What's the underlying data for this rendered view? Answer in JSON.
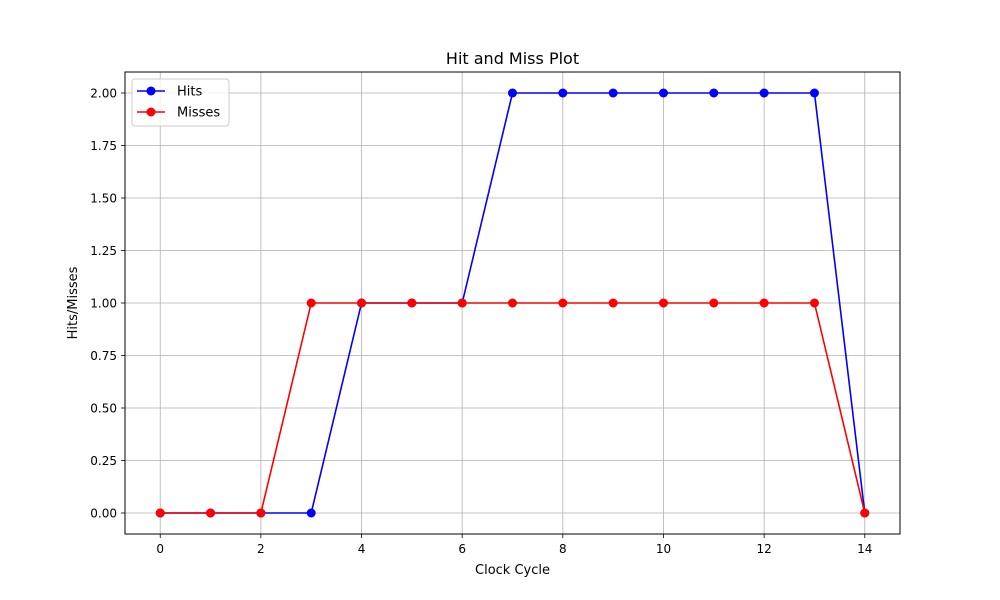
{
  "chart_data": {
    "type": "line",
    "title": "Hit and Miss Plot",
    "xlabel": "Clock Cycle",
    "ylabel": "Hits/Misses",
    "x": [
      0,
      1,
      2,
      3,
      4,
      5,
      6,
      7,
      8,
      9,
      10,
      11,
      12,
      13,
      14
    ],
    "series": [
      {
        "name": "Hits",
        "color": "#0000ff",
        "marker": "circle",
        "values": [
          0,
          0,
          0,
          0,
          1,
          1,
          1,
          2,
          2,
          2,
          2,
          2,
          2,
          2,
          0
        ]
      },
      {
        "name": "Misses",
        "color": "#ff0000",
        "marker": "circle",
        "values": [
          0,
          0,
          0,
          1,
          1,
          1,
          1,
          1,
          1,
          1,
          1,
          1,
          1,
          1,
          0
        ]
      }
    ],
    "xlim": [
      -0.7,
      14.7
    ],
    "ylim": [
      -0.1,
      2.1
    ],
    "xticks": [
      0,
      2,
      4,
      6,
      8,
      10,
      12,
      14
    ],
    "xtick_labels": [
      "0",
      "2",
      "4",
      "6",
      "8",
      "10",
      "12",
      "14"
    ],
    "yticks": [
      0,
      0.25,
      0.5,
      0.75,
      1.0,
      1.25,
      1.5,
      1.75,
      2.0
    ],
    "ytick_labels": [
      "0.00",
      "0.25",
      "0.50",
      "0.75",
      "1.00",
      "1.25",
      "1.50",
      "1.75",
      "2.00"
    ],
    "grid": true,
    "legend_position": "top-left"
  }
}
